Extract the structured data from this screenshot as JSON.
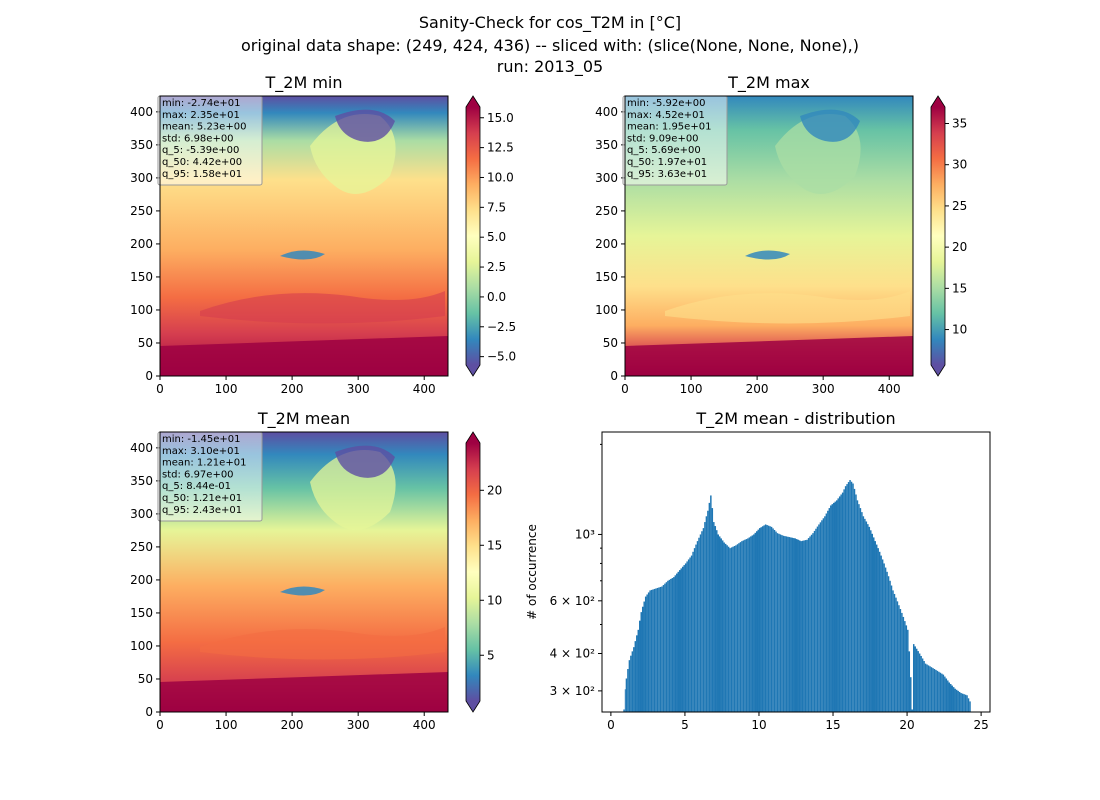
{
  "figure": {
    "title_line1": "Sanity-Check for cos_T2M in [°C]",
    "title_line2": "original data shape: (249, 424, 436) -- sliced with: (slice(None, None, None),)",
    "title_line3": "run: 2013_05"
  },
  "colormap": {
    "name": "Spectral_r",
    "stops": [
      "#5e4fa2",
      "#3288bd",
      "#66c2a5",
      "#abdda4",
      "#e6f598",
      "#ffffbf",
      "#fee08b",
      "#fdae61",
      "#f46d43",
      "#d53e4f",
      "#9e0142"
    ]
  },
  "chart_data": [
    {
      "type": "heatmap",
      "title": "T_2M min",
      "x_ticks": [
        "0",
        "100",
        "200",
        "300",
        "400"
      ],
      "y_ticks": [
        "0",
        "50",
        "100",
        "150",
        "200",
        "250",
        "300",
        "350",
        "400"
      ],
      "xlim": [
        0,
        436
      ],
      "ylim": [
        0,
        424
      ],
      "colorbar_range": [
        -5.7,
        15.9
      ],
      "colorbar_ticks": [
        "−5.0",
        "−2.5",
        "0.0",
        "2.5",
        "5.0",
        "7.5",
        "10.0",
        "12.5",
        "15.0"
      ],
      "colorbar_tick_values": [
        -5.0,
        -2.5,
        0.0,
        2.5,
        5.0,
        7.5,
        10.0,
        12.5,
        15.0
      ],
      "stats": [
        "min: -2.74e+01",
        "max: 2.35e+01",
        "mean: 5.23e+00",
        "std: 6.98e+00",
        "q_5: -5.39e+00",
        "q_50: 4.42e+00",
        "q_95: 1.58e+01"
      ]
    },
    {
      "type": "heatmap",
      "title": "T_2M max",
      "x_ticks": [
        "0",
        "100",
        "200",
        "300",
        "400"
      ],
      "y_ticks": [
        "0",
        "50",
        "100",
        "150",
        "200",
        "250",
        "300",
        "350",
        "400"
      ],
      "xlim": [
        0,
        436
      ],
      "ylim": [
        0,
        424
      ],
      "colorbar_range": [
        5.7,
        37.0
      ],
      "colorbar_ticks": [
        "10",
        "15",
        "20",
        "25",
        "30",
        "35"
      ],
      "colorbar_tick_values": [
        10,
        15,
        20,
        25,
        30,
        35
      ],
      "stats": [
        "min: -5.92e+00",
        "max: 4.52e+01",
        "mean: 1.95e+01",
        "std: 9.09e+00",
        "q_5: 5.69e+00",
        "q_50: 1.97e+01",
        "q_95: 3.63e+01"
      ]
    },
    {
      "type": "heatmap",
      "title": "T_2M mean",
      "x_ticks": [
        "0",
        "100",
        "200",
        "300",
        "400"
      ],
      "y_ticks": [
        "0",
        "50",
        "100",
        "150",
        "200",
        "250",
        "300",
        "350",
        "400"
      ],
      "xlim": [
        0,
        436
      ],
      "ylim": [
        0,
        424
      ],
      "colorbar_range": [
        0.84,
        24.3
      ],
      "colorbar_ticks": [
        "5",
        "10",
        "15",
        "20"
      ],
      "colorbar_tick_values": [
        5,
        10,
        15,
        20
      ],
      "stats": [
        "min: -1.45e+01",
        "max: 3.10e+01",
        "mean: 1.21e+01",
        "std: 6.97e+00",
        "q_5: 8.44e-01",
        "q_50: 1.21e+01",
        "q_95: 2.43e+01"
      ]
    },
    {
      "type": "bar",
      "title": "T_2M mean - distribution",
      "ylabel": "# of occurrence",
      "yscale": "log",
      "xlim": [
        -0.6,
        25.6
      ],
      "ylim": [
        255,
        2200
      ],
      "x_ticks": [
        "0",
        "5",
        "10",
        "15",
        "20",
        "25"
      ],
      "x_tick_values": [
        0,
        5,
        10,
        15,
        20,
        25
      ],
      "y_ticks": [
        "3 × 10²",
        "4 × 10²",
        "6 × 10²",
        "10³"
      ],
      "y_tick_values": [
        300,
        400,
        600,
        1000
      ],
      "bar_color": "#1f77b4",
      "bin_start": 0.84,
      "bin_width": 0.1,
      "bins": [
        [
          0.84,
          260
        ],
        [
          1.0,
          330
        ],
        [
          1.2,
          380
        ],
        [
          1.5,
          420
        ],
        [
          1.8,
          480
        ],
        [
          2.0,
          550
        ],
        [
          2.3,
          620
        ],
        [
          2.6,
          650
        ],
        [
          3.0,
          660
        ],
        [
          3.4,
          670
        ],
        [
          3.8,
          700
        ],
        [
          4.2,
          720
        ],
        [
          4.6,
          760
        ],
        [
          5.0,
          800
        ],
        [
          5.4,
          850
        ],
        [
          5.8,
          950
        ],
        [
          6.2,
          1050
        ],
        [
          6.5,
          1200
        ],
        [
          6.7,
          1350
        ],
        [
          6.9,
          1100
        ],
        [
          7.2,
          1000
        ],
        [
          7.6,
          940
        ],
        [
          8.0,
          900
        ],
        [
          8.4,
          920
        ],
        [
          8.8,
          950
        ],
        [
          9.2,
          970
        ],
        [
          9.6,
          1000
        ],
        [
          10.0,
          1050
        ],
        [
          10.4,
          1080
        ],
        [
          10.8,
          1060
        ],
        [
          11.2,
          1010
        ],
        [
          11.6,
          990
        ],
        [
          12.0,
          980
        ],
        [
          12.4,
          970
        ],
        [
          12.8,
          950
        ],
        [
          13.2,
          960
        ],
        [
          13.6,
          1010
        ],
        [
          14.0,
          1080
        ],
        [
          14.4,
          1150
        ],
        [
          14.8,
          1250
        ],
        [
          15.2,
          1300
        ],
        [
          15.6,
          1380
        ],
        [
          15.8,
          1450
        ],
        [
          16.1,
          1520
        ],
        [
          16.3,
          1480
        ],
        [
          16.6,
          1300
        ],
        [
          17.0,
          1150
        ],
        [
          17.4,
          1060
        ],
        [
          17.8,
          950
        ],
        [
          18.2,
          850
        ],
        [
          18.6,
          750
        ],
        [
          19.0,
          650
        ],
        [
          19.4,
          580
        ],
        [
          19.7,
          530
        ],
        [
          20.0,
          480
        ],
        [
          20.3,
          260
        ],
        [
          20.4,
          430
        ],
        [
          20.8,
          400
        ],
        [
          21.2,
          370
        ],
        [
          21.6,
          360
        ],
        [
          22.0,
          350
        ],
        [
          22.4,
          340
        ],
        [
          22.8,
          320
        ],
        [
          23.2,
          305
        ],
        [
          23.6,
          295
        ],
        [
          24.0,
          290
        ],
        [
          24.3,
          270
        ]
      ]
    }
  ]
}
